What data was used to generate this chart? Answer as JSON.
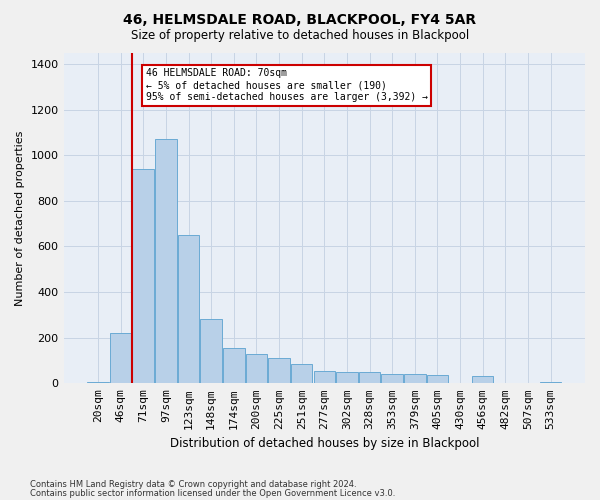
{
  "title": "46, HELMSDALE ROAD, BLACKPOOL, FY4 5AR",
  "subtitle": "Size of property relative to detached houses in Blackpool",
  "xlabel": "Distribution of detached houses by size in Blackpool",
  "ylabel": "Number of detached properties",
  "categories": [
    "20sqm",
    "46sqm",
    "71sqm",
    "97sqm",
    "123sqm",
    "148sqm",
    "174sqm",
    "200sqm",
    "225sqm",
    "251sqm",
    "277sqm",
    "302sqm",
    "328sqm",
    "353sqm",
    "379sqm",
    "405sqm",
    "430sqm",
    "456sqm",
    "482sqm",
    "507sqm",
    "533sqm"
  ],
  "values": [
    5,
    220,
    940,
    1070,
    650,
    280,
    155,
    130,
    110,
    85,
    55,
    50,
    50,
    40,
    40,
    35,
    0,
    30,
    0,
    0,
    5
  ],
  "bar_color": "#b8d0e8",
  "bar_edge_color": "#6aaad4",
  "grid_color": "#c8d4e4",
  "background_color": "#e8eef6",
  "fig_background_color": "#f0f0f0",
  "red_line_index": 2,
  "annotation_text": "46 HELMSDALE ROAD: 70sqm\n← 5% of detached houses are smaller (190)\n95% of semi-detached houses are larger (3,392) →",
  "annotation_box_facecolor": "#ffffff",
  "annotation_box_edgecolor": "#cc0000",
  "red_line_color": "#cc0000",
  "ylim": [
    0,
    1450
  ],
  "yticks": [
    0,
    200,
    400,
    600,
    800,
    1000,
    1200,
    1400
  ],
  "footnote_line1": "Contains HM Land Registry data © Crown copyright and database right 2024.",
  "footnote_line2": "Contains public sector information licensed under the Open Government Licence v3.0."
}
